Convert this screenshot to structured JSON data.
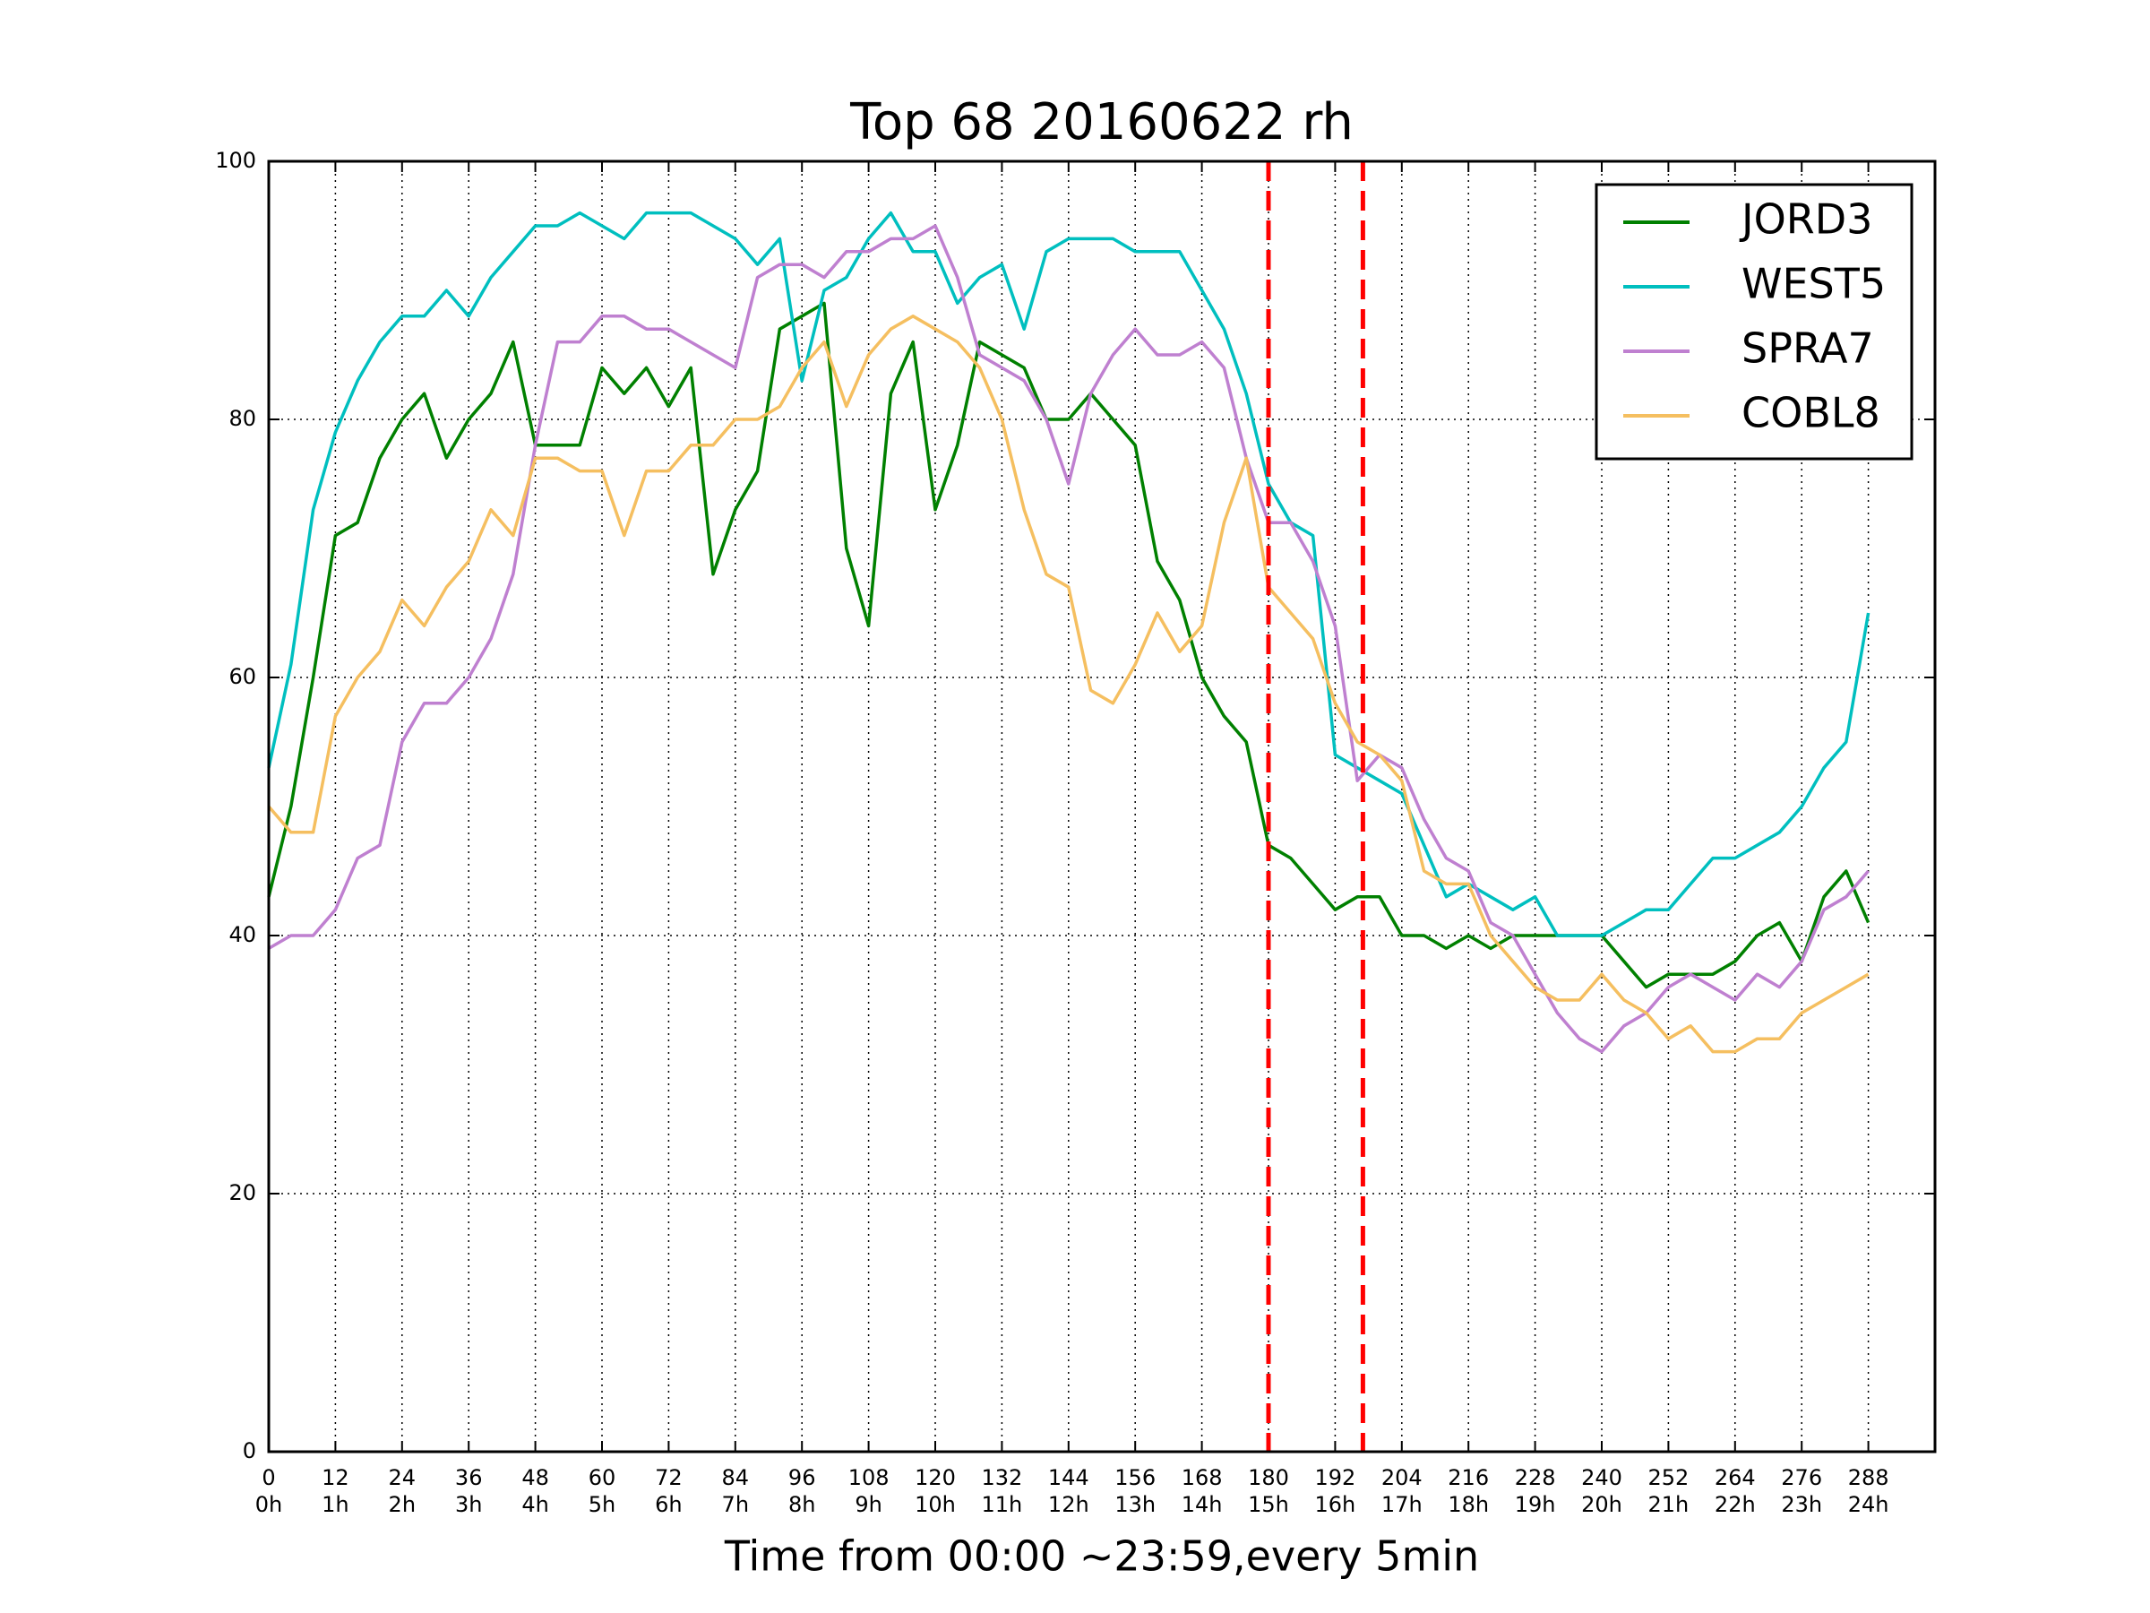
{
  "chart_data": {
    "type": "line",
    "title": "Top 68 20160622 rh",
    "x_label": "Time from 00:00 ~23:59,every 5min",
    "x": [
      0,
      4,
      8,
      12,
      16,
      20,
      24,
      28,
      32,
      36,
      40,
      44,
      48,
      52,
      56,
      60,
      64,
      68,
      72,
      76,
      80,
      84,
      88,
      92,
      96,
      100,
      104,
      108,
      112,
      116,
      120,
      124,
      128,
      132,
      136,
      140,
      144,
      148,
      152,
      156,
      160,
      164,
      168,
      172,
      176,
      180,
      184,
      188,
      192,
      196,
      200,
      204,
      208,
      212,
      216,
      220,
      224,
      228,
      232,
      236,
      240,
      244,
      248,
      252,
      256,
      260,
      264,
      268,
      272,
      276,
      280,
      284,
      288
    ],
    "series": [
      {
        "name": "JORD3",
        "color": "#008000",
        "values": [
          43,
          50,
          60,
          71,
          72,
          77,
          80,
          82,
          77,
          80,
          82,
          86,
          78,
          78,
          78,
          84,
          82,
          84,
          81,
          84,
          68,
          73,
          76,
          87,
          88,
          89,
          70,
          64,
          82,
          86,
          73,
          78,
          86,
          85,
          84,
          80,
          80,
          82,
          80,
          78,
          69,
          66,
          60,
          57,
          55,
          47,
          46,
          44,
          42,
          43,
          43,
          40,
          40,
          39,
          40,
          39,
          40,
          40,
          40,
          40,
          40,
          38,
          36,
          37,
          37,
          37,
          38,
          40,
          41,
          38,
          43,
          45,
          41
        ]
      },
      {
        "name": "WEST5",
        "color": "#00bfbf",
        "values": [
          53,
          61,
          73,
          79,
          83,
          86,
          88,
          88,
          90,
          88,
          91,
          93,
          95,
          95,
          96,
          95,
          94,
          96,
          96,
          96,
          95,
          94,
          92,
          94,
          83,
          90,
          91,
          94,
          96,
          93,
          93,
          89,
          91,
          92,
          87,
          93,
          94,
          94,
          94,
          93,
          93,
          93,
          90,
          87,
          82,
          75,
          72,
          71,
          54,
          53,
          52,
          51,
          47,
          43,
          44,
          43,
          42,
          43,
          40,
          40,
          40,
          41,
          42,
          42,
          44,
          46,
          46,
          47,
          48,
          50,
          53,
          55,
          65
        ]
      },
      {
        "name": "SPRA7",
        "color": "#bf80d0",
        "values": [
          39,
          40,
          40,
          42,
          46,
          47,
          55,
          58,
          58,
          60,
          63,
          68,
          78,
          86,
          86,
          88,
          88,
          87,
          87,
          86,
          85,
          84,
          91,
          92,
          92,
          91,
          93,
          93,
          94,
          94,
          95,
          91,
          85,
          84,
          83,
          80,
          75,
          82,
          85,
          87,
          85,
          85,
          86,
          84,
          77,
          72,
          72,
          69,
          64,
          52,
          54,
          53,
          49,
          46,
          45,
          41,
          40,
          37,
          34,
          32,
          31,
          33,
          34,
          36,
          37,
          36,
          35,
          37,
          36,
          38,
          42,
          43,
          45
        ]
      },
      {
        "name": "COBL8",
        "color": "#f5bf60",
        "values": [
          50,
          48,
          48,
          57,
          60,
          62,
          66,
          64,
          67,
          69,
          73,
          71,
          77,
          77,
          76,
          76,
          71,
          76,
          76,
          78,
          78,
          80,
          80,
          81,
          84,
          86,
          81,
          85,
          87,
          88,
          87,
          86,
          84,
          80,
          73,
          68,
          67,
          59,
          58,
          61,
          65,
          62,
          64,
          72,
          77,
          67,
          65,
          63,
          58,
          55,
          54,
          52,
          45,
          44,
          44,
          40,
          38,
          36,
          35,
          35,
          37,
          35,
          34,
          32,
          33,
          31,
          31,
          32,
          32,
          34,
          35,
          36,
          37
        ]
      }
    ],
    "xlim": [
      0,
      300
    ],
    "ylim": [
      0,
      100
    ],
    "xticks": [
      0,
      12,
      24,
      36,
      48,
      60,
      72,
      84,
      96,
      108,
      120,
      132,
      144,
      156,
      168,
      180,
      192,
      204,
      216,
      228,
      240,
      252,
      264,
      276,
      288
    ],
    "xtick_hours": [
      "0h",
      "1h",
      "2h",
      "3h",
      "4h",
      "5h",
      "6h",
      "7h",
      "8h",
      "9h",
      "10h",
      "11h",
      "12h",
      "13h",
      "14h",
      "15h",
      "16h",
      "17h",
      "18h",
      "19h",
      "20h",
      "21h",
      "22h",
      "23h",
      "24h"
    ],
    "yticks": [
      0,
      20,
      40,
      60,
      80,
      100
    ],
    "grid": true,
    "legend": "upper right",
    "vlines": [
      180,
      197
    ],
    "vline_color": "#ff0000"
  }
}
